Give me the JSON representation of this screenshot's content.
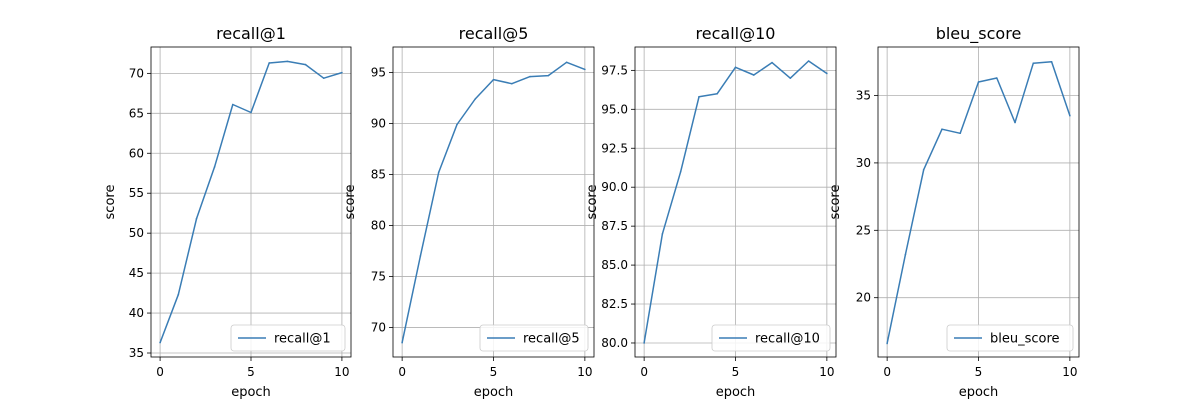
{
  "chart_data": [
    {
      "type": "line",
      "title": "recall@1",
      "xlabel": "epoch",
      "ylabel": "score",
      "x": [
        0,
        1,
        2,
        3,
        4,
        5,
        6,
        7,
        8,
        9,
        10
      ],
      "xlim": [
        -0.5,
        10.5
      ],
      "ylim": [
        34.5,
        73.3
      ],
      "xticks": [
        0,
        5,
        10
      ],
      "yticks": [
        35,
        40,
        45,
        50,
        55,
        60,
        65,
        70
      ],
      "ytick_labels": [
        "35",
        "40",
        "45",
        "50",
        "55",
        "60",
        "65",
        "70"
      ],
      "grid": true,
      "legend_location": "lower right",
      "series": [
        {
          "name": "recall@1",
          "color": "#3a7db5",
          "values": [
            36.3,
            42.3,
            51.8,
            58.3,
            66.1,
            65.1,
            71.3,
            71.5,
            71.1,
            69.4,
            70.1
          ]
        }
      ]
    },
    {
      "type": "line",
      "title": "recall@5",
      "xlabel": "epoch",
      "ylabel": "score",
      "x": [
        0,
        1,
        2,
        3,
        4,
        5,
        6,
        7,
        8,
        9,
        10
      ],
      "xlim": [
        -0.5,
        10.5
      ],
      "ylim": [
        67.1,
        97.5
      ],
      "xticks": [
        0,
        5,
        10
      ],
      "yticks": [
        70,
        75,
        80,
        85,
        90,
        95
      ],
      "ytick_labels": [
        "70",
        "75",
        "80",
        "85",
        "90",
        "95"
      ],
      "grid": true,
      "legend_location": "lower right",
      "series": [
        {
          "name": "recall@5",
          "color": "#3a7db5",
          "values": [
            68.5,
            77.0,
            85.2,
            89.9,
            92.4,
            94.3,
            93.9,
            94.6,
            94.7,
            96.0,
            95.3
          ]
        }
      ]
    },
    {
      "type": "line",
      "title": "recall@10",
      "xlabel": "epoch",
      "ylabel": "score",
      "x": [
        0,
        1,
        2,
        3,
        4,
        5,
        6,
        7,
        8,
        9,
        10
      ],
      "xlim": [
        -0.5,
        10.5
      ],
      "ylim": [
        79.1,
        99.0
      ],
      "xticks": [
        0,
        5,
        10
      ],
      "yticks": [
        80.0,
        82.5,
        85.0,
        87.5,
        90.0,
        92.5,
        95.0,
        97.5
      ],
      "ytick_labels": [
        "80.0",
        "82.5",
        "85.0",
        "87.5",
        "90.0",
        "92.5",
        "95.0",
        "97.5"
      ],
      "grid": true,
      "legend_location": "lower right",
      "series": [
        {
          "name": "recall@10",
          "color": "#3a7db5",
          "values": [
            80.0,
            87.0,
            91.0,
            95.8,
            96.0,
            97.7,
            97.2,
            98.0,
            97.0,
            98.1,
            97.3
          ]
        }
      ]
    },
    {
      "type": "line",
      "title": "bleu_score",
      "xlabel": "epoch",
      "ylabel": "score",
      "x": [
        0,
        1,
        2,
        3,
        4,
        5,
        6,
        7,
        8,
        9,
        10
      ],
      "xlim": [
        -0.5,
        10.5
      ],
      "ylim": [
        15.6,
        38.6
      ],
      "xticks": [
        0,
        5,
        10
      ],
      "yticks": [
        20,
        25,
        30,
        35
      ],
      "ytick_labels": [
        "20",
        "25",
        "30",
        "35"
      ],
      "grid": true,
      "legend_location": "lower right",
      "series": [
        {
          "name": "bleu_score",
          "color": "#3a7db5",
          "values": [
            16.6,
            23.2,
            29.5,
            32.5,
            32.2,
            36.0,
            36.3,
            33.0,
            37.4,
            37.5,
            33.5
          ]
        }
      ]
    }
  ]
}
